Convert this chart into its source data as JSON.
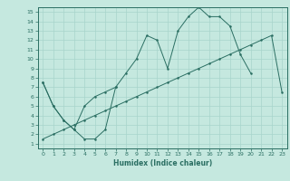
{
  "xlabel": "Humidex (Indice chaleur)",
  "xlim": [
    -0.5,
    23.5
  ],
  "ylim": [
    0.5,
    15.5
  ],
  "xticks": [
    0,
    1,
    2,
    3,
    4,
    5,
    6,
    7,
    8,
    9,
    10,
    11,
    12,
    13,
    14,
    15,
    16,
    17,
    18,
    19,
    20,
    21,
    22,
    23
  ],
  "yticks": [
    1,
    2,
    3,
    4,
    5,
    6,
    7,
    8,
    9,
    10,
    11,
    12,
    13,
    14,
    15
  ],
  "line_color": "#2a6e62",
  "bg_color": "#c5e8df",
  "grid_color": "#a8d4cb",
  "line1_x": [
    0,
    1,
    2,
    3,
    4,
    5,
    6,
    7,
    8,
    9,
    10,
    11,
    12,
    13,
    14,
    15,
    16,
    17,
    18,
    19,
    20
  ],
  "line1_y": [
    7.5,
    5.0,
    3.5,
    2.5,
    1.5,
    1.5,
    2.5,
    7.0,
    8.5,
    10.0,
    12.5,
    12.0,
    9.0,
    13.0,
    14.5,
    15.5,
    14.5,
    14.5,
    13.5,
    10.5,
    8.5
  ],
  "line2_x": [
    0,
    1,
    2,
    3,
    4,
    5,
    6,
    7
  ],
  "line2_y": [
    7.5,
    5.0,
    3.5,
    2.5,
    5.0,
    6.0,
    6.5,
    7.0
  ],
  "line3_x": [
    0,
    1,
    2,
    3,
    4,
    5,
    6,
    7,
    8,
    9,
    10,
    11,
    12,
    13,
    14,
    15,
    16,
    17,
    18,
    19,
    20,
    21,
    22,
    23
  ],
  "line3_y": [
    1.5,
    2.0,
    2.5,
    3.0,
    3.5,
    4.0,
    4.5,
    5.0,
    5.5,
    6.0,
    6.5,
    7.0,
    7.5,
    8.0,
    8.5,
    9.0,
    9.5,
    10.0,
    10.5,
    11.0,
    11.5,
    12.0,
    12.5,
    6.5
  ]
}
